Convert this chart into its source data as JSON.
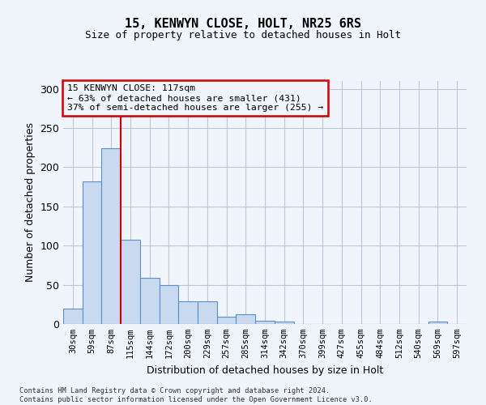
{
  "title1": "15, KENWYN CLOSE, HOLT, NR25 6RS",
  "title2": "Size of property relative to detached houses in Holt",
  "xlabel": "Distribution of detached houses by size in Holt",
  "ylabel": "Number of detached properties",
  "footnote": "Contains HM Land Registry data © Crown copyright and database right 2024.\nContains public sector information licensed under the Open Government Licence v3.0.",
  "bar_color": "#c9d9f0",
  "bar_edge_color": "#5b8fc9",
  "grid_color": "#c0c8d8",
  "annotation_box_color": "#cc0000",
  "vline_color": "#cc0000",
  "bar_labels": [
    "30sqm",
    "59sqm",
    "87sqm",
    "115sqm",
    "144sqm",
    "172sqm",
    "200sqm",
    "229sqm",
    "257sqm",
    "285sqm",
    "314sqm",
    "342sqm",
    "370sqm",
    "399sqm",
    "427sqm",
    "455sqm",
    "484sqm",
    "512sqm",
    "540sqm",
    "569sqm",
    "597sqm"
  ],
  "values": [
    20,
    182,
    224,
    107,
    59,
    50,
    29,
    29,
    9,
    12,
    4,
    3,
    0,
    0,
    0,
    0,
    0,
    0,
    0,
    3,
    0
  ],
  "ylim": [
    0,
    310
  ],
  "yticks": [
    0,
    50,
    100,
    150,
    200,
    250,
    300
  ],
  "vline_x": 2.5,
  "annotation_text": "15 KENWYN CLOSE: 117sqm\n← 63% of detached houses are smaller (431)\n37% of semi-detached houses are larger (255) →",
  "background_color": "#f0f4fb"
}
